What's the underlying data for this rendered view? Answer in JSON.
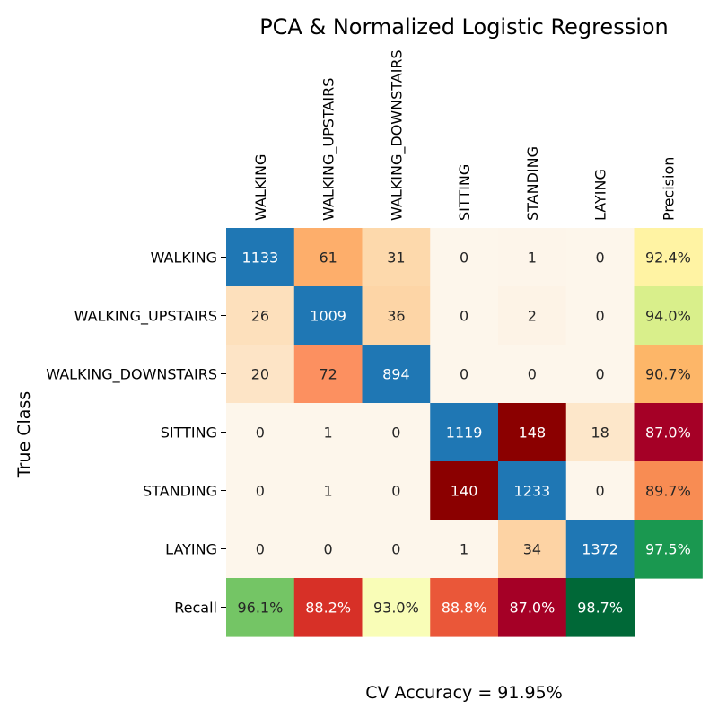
{
  "chart_data": {
    "type": "heatmap",
    "title": "PCA & Normalized Logistic Regression",
    "ylabel": "True Class",
    "xlabel": "",
    "footer": "CV Accuracy = 91.95%",
    "columns": [
      "WALKING",
      "WALKING_UPSTAIRS",
      "WALKING_DOWNSTAIRS",
      "SITTING",
      "STANDING",
      "LAYING",
      "Precision"
    ],
    "rows": [
      "WALKING",
      "WALKING_UPSTAIRS",
      "WALKING_DOWNSTAIRS",
      "SITTING",
      "STANDING",
      "LAYING",
      "Recall"
    ],
    "matrix": [
      [
        1133,
        61,
        31,
        0,
        1,
        0
      ],
      [
        26,
        1009,
        36,
        0,
        2,
        0
      ],
      [
        20,
        72,
        894,
        0,
        0,
        0
      ],
      [
        0,
        1,
        0,
        1119,
        148,
        18
      ],
      [
        0,
        1,
        0,
        140,
        1233,
        0
      ],
      [
        0,
        0,
        0,
        1,
        34,
        1372
      ]
    ],
    "precision": [
      "92.4%",
      "94.0%",
      "90.7%",
      "87.0%",
      "89.7%",
      "97.5%"
    ],
    "recall": [
      "96.1%",
      "88.2%",
      "93.0%",
      "88.8%",
      "87.0%",
      "98.7%"
    ],
    "diagonal_color": "#1f77b4",
    "colors": {
      "matrix": [
        [
          "#1f77b4",
          "#fdae6b",
          "#fdd9ac",
          "#fdf6eb",
          "#fdf5ea",
          "#fdf6eb"
        ],
        [
          "#fde0bc",
          "#1f77b4",
          "#fdd5a6",
          "#fdf6eb",
          "#fdf3e6",
          "#fdf6eb"
        ],
        [
          "#fde4c6",
          "#fc9060",
          "#1f77b4",
          "#fdf6eb",
          "#fdf6eb",
          "#fdf6eb"
        ],
        [
          "#fdf6eb",
          "#fdf6eb",
          "#fdf6eb",
          "#1f77b4",
          "#8b0000",
          "#fde7ca"
        ],
        [
          "#fdf6eb",
          "#fdf6eb",
          "#fdf6eb",
          "#8b0000",
          "#1f77b4",
          "#fdf6eb"
        ],
        [
          "#fdf6eb",
          "#fdf6eb",
          "#fdf6eb",
          "#fdf6eb",
          "#fdd3a4",
          "#1f77b4"
        ]
      ],
      "precision": [
        "#fff3a3",
        "#d9ef8b",
        "#fdb668",
        "#a50026",
        "#f88c53",
        "#1a9850"
      ],
      "recall": [
        "#74c565",
        "#d73027",
        "#f9fdb7",
        "#ea5739",
        "#a50026",
        "#006837"
      ]
    }
  }
}
